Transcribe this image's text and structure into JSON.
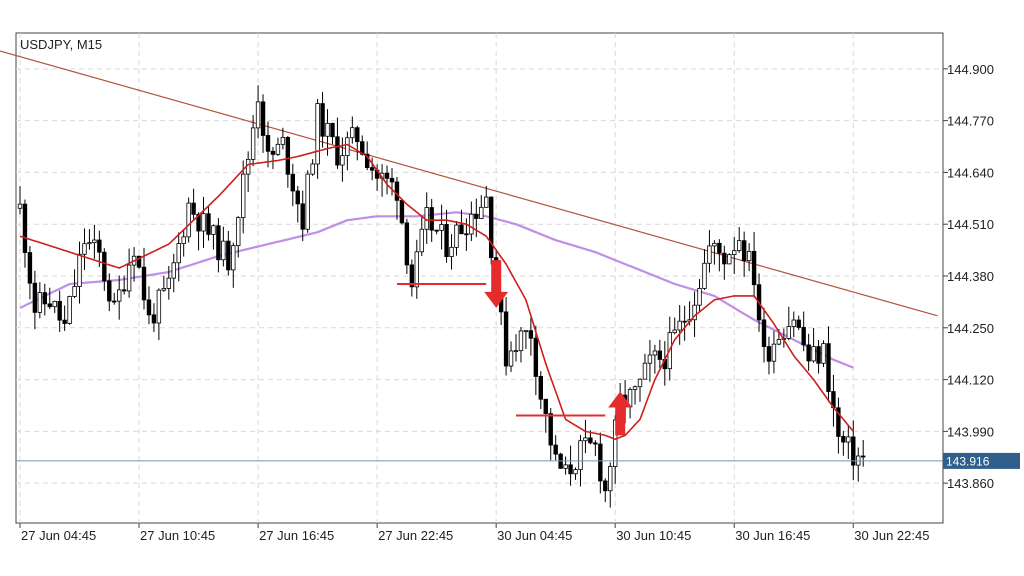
{
  "header": {
    "symbol_label": "USDJPY, M15"
  },
  "colors": {
    "background": "#ffffff",
    "grid": "#d9d9d9",
    "axis": "#444444",
    "bull_candle": "#ffffff",
    "bear_candle": "#000000",
    "candle_outline": "#000000",
    "fast_ma": "#cc1f1f",
    "slow_ma": "#c08ee8",
    "trendline": "#b3533a",
    "annotation": "#e52b2b",
    "current_price_line": "#7f95a8",
    "current_price_badge": "#2f5f8a"
  },
  "chart_data": {
    "type": "candlestick",
    "title": "USDJPY, M15",
    "xlabel": "",
    "ylabel": "",
    "ylim": [
      143.76,
      144.99
    ],
    "grid": true,
    "y_ticks": [
      "144.900",
      "144.770",
      "144.640",
      "144.510",
      "144.380",
      "144.250",
      "144.120",
      "143.990",
      "143.860"
    ],
    "x_ticks": [
      {
        "label": "27 Jun 04:45",
        "index": 0
      },
      {
        "label": "27 Jun 10:45",
        "index": 24
      },
      {
        "label": "27 Jun 16:45",
        "index": 48
      },
      {
        "label": "27 Jun 22:45",
        "index": 72
      },
      {
        "label": "30 Jun 04:45",
        "index": 96
      },
      {
        "label": "30 Jun 10:45",
        "index": 120
      },
      {
        "label": "30 Jun 16:45",
        "index": 144
      },
      {
        "label": "30 Jun 22:45",
        "index": 168
      }
    ],
    "current_price": {
      "label": "143.916",
      "value": 143.916
    },
    "anchors": [
      [
        0,
        144.55
      ],
      [
        3,
        144.3
      ],
      [
        6,
        144.32
      ],
      [
        9,
        144.25
      ],
      [
        13,
        144.47
      ],
      [
        16,
        144.43
      ],
      [
        19,
        144.29
      ],
      [
        23,
        144.46
      ],
      [
        26,
        144.27
      ],
      [
        30,
        144.35
      ],
      [
        34,
        144.56
      ],
      [
        38,
        144.49
      ],
      [
        42,
        144.42
      ],
      [
        46,
        144.68
      ],
      [
        48,
        144.84
      ],
      [
        50,
        144.67
      ],
      [
        53,
        144.71
      ],
      [
        57,
        144.52
      ],
      [
        60,
        144.78
      ],
      [
        64,
        144.69
      ],
      [
        68,
        144.73
      ],
      [
        72,
        144.63
      ],
      [
        76,
        144.6
      ],
      [
        79,
        144.36
      ],
      [
        82,
        144.52
      ],
      [
        86,
        144.46
      ],
      [
        90,
        144.52
      ],
      [
        94,
        144.58
      ],
      [
        96,
        144.34
      ],
      [
        98,
        144.18
      ],
      [
        100,
        144.22
      ],
      [
        103,
        144.24
      ],
      [
        105,
        144.08
      ],
      [
        108,
        143.91
      ],
      [
        110,
        143.88
      ],
      [
        113,
        143.94
      ],
      [
        116,
        143.95
      ],
      [
        118,
        143.84
      ],
      [
        121,
        144.06
      ],
      [
        124,
        144.08
      ],
      [
        127,
        144.16
      ],
      [
        130,
        144.18
      ],
      [
        133,
        144.25
      ],
      [
        136,
        144.33
      ],
      [
        139,
        144.45
      ],
      [
        142,
        144.43
      ],
      [
        145,
        144.48
      ],
      [
        148,
        144.38
      ],
      [
        150,
        144.18
      ],
      [
        153,
        144.24
      ],
      [
        156,
        144.28
      ],
      [
        159,
        144.17
      ],
      [
        162,
        144.19
      ],
      [
        165,
        143.97
      ],
      [
        168,
        143.93
      ],
      [
        170,
        143.92
      ]
    ],
    "fast_ma": [
      [
        0,
        144.48
      ],
      [
        10,
        144.44
      ],
      [
        20,
        144.4
      ],
      [
        30,
        144.46
      ],
      [
        40,
        144.58
      ],
      [
        46,
        144.66
      ],
      [
        52,
        144.67
      ],
      [
        56,
        144.68
      ],
      [
        62,
        144.7
      ],
      [
        66,
        144.71
      ],
      [
        70,
        144.68
      ],
      [
        74,
        144.61
      ],
      [
        78,
        144.56
      ],
      [
        82,
        144.52
      ],
      [
        86,
        144.52
      ],
      [
        90,
        144.51
      ],
      [
        94,
        144.48
      ],
      [
        98,
        144.41
      ],
      [
        102,
        144.32
      ],
      [
        106,
        144.16
      ],
      [
        110,
        144.02
      ],
      [
        114,
        143.99
      ],
      [
        118,
        143.98
      ],
      [
        120,
        143.97
      ],
      [
        122,
        143.98
      ],
      [
        125,
        144.02
      ],
      [
        128,
        144.12
      ],
      [
        132,
        144.22
      ],
      [
        136,
        144.28
      ],
      [
        140,
        144.32
      ],
      [
        144,
        144.33
      ],
      [
        148,
        144.33
      ],
      [
        152,
        144.26
      ],
      [
        156,
        144.18
      ],
      [
        160,
        144.12
      ],
      [
        164,
        144.05
      ],
      [
        168,
        143.99
      ]
    ],
    "slow_ma": [
      [
        0,
        144.3
      ],
      [
        10,
        144.36
      ],
      [
        20,
        144.37
      ],
      [
        30,
        144.39
      ],
      [
        40,
        144.43
      ],
      [
        50,
        144.46
      ],
      [
        60,
        144.49
      ],
      [
        66,
        144.52
      ],
      [
        72,
        144.53
      ],
      [
        80,
        144.53
      ],
      [
        88,
        144.54
      ],
      [
        94,
        144.53
      ],
      [
        100,
        144.51
      ],
      [
        108,
        144.47
      ],
      [
        116,
        144.44
      ],
      [
        124,
        144.4
      ],
      [
        132,
        144.36
      ],
      [
        140,
        144.33
      ],
      [
        148,
        144.27
      ],
      [
        156,
        144.22
      ],
      [
        164,
        144.17
      ],
      [
        168,
        144.15
      ]
    ],
    "trendline": {
      "start": [
        -14,
        144.98
      ],
      "end": [
        185,
        144.28
      ]
    },
    "annotations": [
      {
        "type": "sell",
        "level_start": 76,
        "level_end": 94,
        "level": 144.36,
        "arrow_index": 96,
        "arrow_top": 144.42,
        "arrow_bottom": 144.3
      },
      {
        "type": "buy",
        "level_start": 100,
        "level_end": 118,
        "level": 144.03,
        "arrow_index": 121,
        "arrow_top": 144.09,
        "arrow_bottom": 143.98
      }
    ]
  }
}
